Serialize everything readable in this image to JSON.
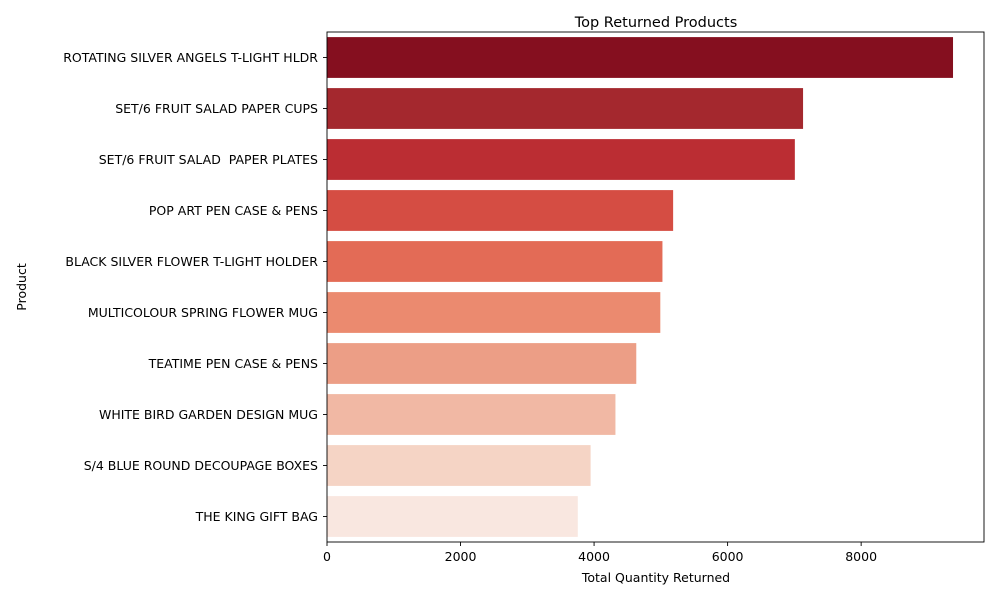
{
  "chart_data": {
    "type": "bar",
    "orientation": "horizontal",
    "title": "Top Returned Products",
    "xlabel": "Total Quantity Returned",
    "ylabel": "Product",
    "categories": [
      "ROTATING SILVER ANGELS T-LIGHT HLDR",
      "SET/6 FRUIT SALAD PAPER CUPS",
      "SET/6 FRUIT SALAD  PAPER PLATES",
      "POP ART PEN CASE & PENS",
      "BLACK SILVER FLOWER T-LIGHT HOLDER",
      "MULTICOLOUR SPRING FLOWER MUG",
      "TEATIME PEN CASE & PENS",
      "WHITE BIRD GARDEN DESIGN MUG",
      "S/4 BLUE ROUND DECOUPAGE BOXES",
      "THE KING GIFT BAG"
    ],
    "values": [
      9376,
      7130,
      7007,
      5184,
      5024,
      4992,
      4632,
      4320,
      3948,
      3756
    ],
    "xlim": [
      0,
      9840
    ],
    "xticks": [
      0,
      2000,
      4000,
      6000,
      8000
    ],
    "xtick_labels": [
      "0",
      "2000",
      "4000",
      "6000",
      "8000"
    ],
    "grid": false,
    "colors": [
      "#850f1f",
      "#a4282e",
      "#bb2d33",
      "#d54d43",
      "#e36b56",
      "#eb8a6f",
      "#ec9e86",
      "#f1b8a4",
      "#f5d4c5",
      "#f9e7e0"
    ]
  }
}
